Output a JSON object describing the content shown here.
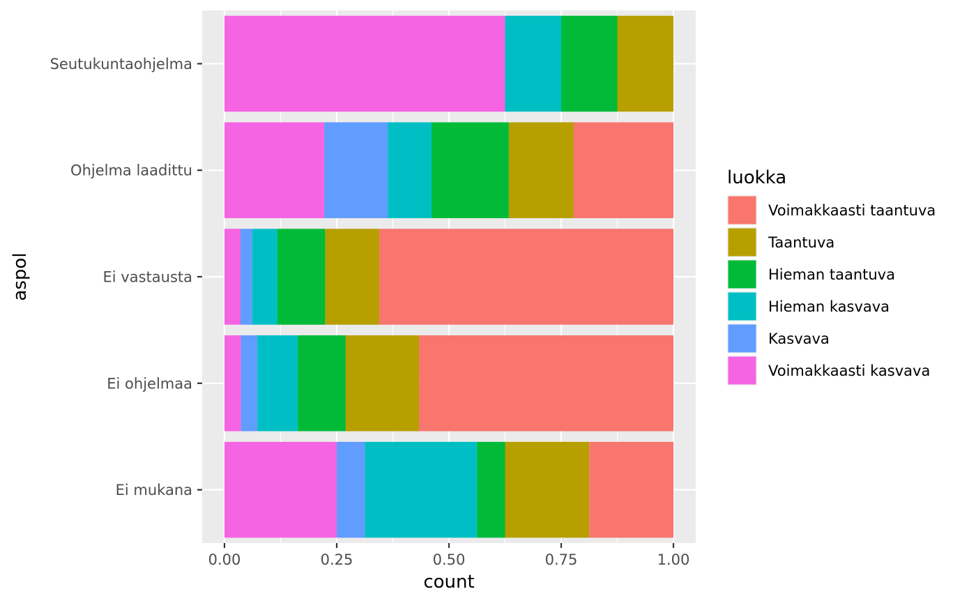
{
  "chart_data": {
    "type": "bar",
    "orientation": "horizontal",
    "stacked": true,
    "position": "fill",
    "title": "",
    "xlabel": "count",
    "ylabel": "aspol",
    "xlim": [
      0,
      1
    ],
    "xticks": [
      "0.00",
      "0.25",
      "0.50",
      "0.75",
      "1.00"
    ],
    "xtick_values": [
      0,
      0.25,
      0.5,
      0.75,
      1
    ],
    "grid": true,
    "categories": [
      "Ei mukana",
      "Ei ohjelmaa",
      "Ei vastausta",
      "Ohjelma laadittu",
      "Seutukuntaohjelma"
    ],
    "legend": {
      "title": "luokka",
      "placement": "right"
    },
    "series": [
      {
        "name": "Voimakkaasti taantuva",
        "color": "#F8766D",
        "values": [
          0.1875,
          0.5667,
          0.6552,
          0.2222,
          0.0
        ]
      },
      {
        "name": "Taantuva",
        "color": "#B79F00",
        "values": [
          0.1875,
          0.1633,
          0.1206,
          0.1444,
          0.125
        ]
      },
      {
        "name": "Hieman taantuva",
        "color": "#00BA38",
        "values": [
          0.0625,
          0.1067,
          0.1063,
          0.1722,
          0.125
        ]
      },
      {
        "name": "Hieman kasvava",
        "color": "#00BFC4",
        "values": [
          0.25,
          0.09,
          0.0557,
          0.0972,
          0.125
        ]
      },
      {
        "name": "Kasvava",
        "color": "#619CFF",
        "values": [
          0.0625,
          0.0366,
          0.0265,
          0.1418,
          0.0
        ]
      },
      {
        "name": "Voimakkaasti kasvava",
        "color": "#F564E3",
        "values": [
          0.25,
          0.0367,
          0.0357,
          0.2222,
          0.625
        ]
      }
    ],
    "stack_order_from_left": [
      "Voimakkaasti kasvava",
      "Kasvava",
      "Hieman kasvava",
      "Hieman taantuva",
      "Taantuva",
      "Voimakkaasti taantuva"
    ]
  }
}
